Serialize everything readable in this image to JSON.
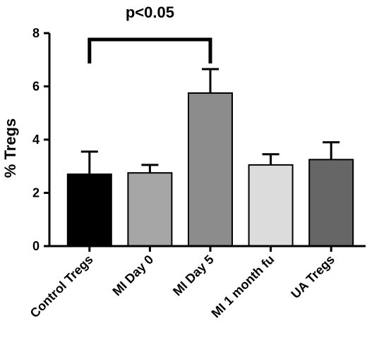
{
  "chart_data": {
    "type": "bar",
    "categories": [
      "Control Tregs",
      "MI Day 0",
      "MI Day 5",
      "MI 1 month fu",
      "UA Tregs"
    ],
    "values": [
      2.7,
      2.75,
      5.75,
      3.05,
      3.25
    ],
    "errors": [
      0.85,
      0.3,
      0.9,
      0.4,
      0.65
    ],
    "colors": [
      "#000000",
      "#a6a6a6",
      "#8c8c8c",
      "#dcdcdc",
      "#666666"
    ],
    "ylabel": "% Tregs",
    "xlabel": "",
    "ylim": [
      0,
      8
    ],
    "yticks": [
      "0",
      "2",
      "4",
      "6",
      "8"
    ],
    "annotation": {
      "text": "p<0.05",
      "from_category": "Control Tregs",
      "to_category": "MI Day 5"
    },
    "grid": false,
    "legend": "none"
  }
}
